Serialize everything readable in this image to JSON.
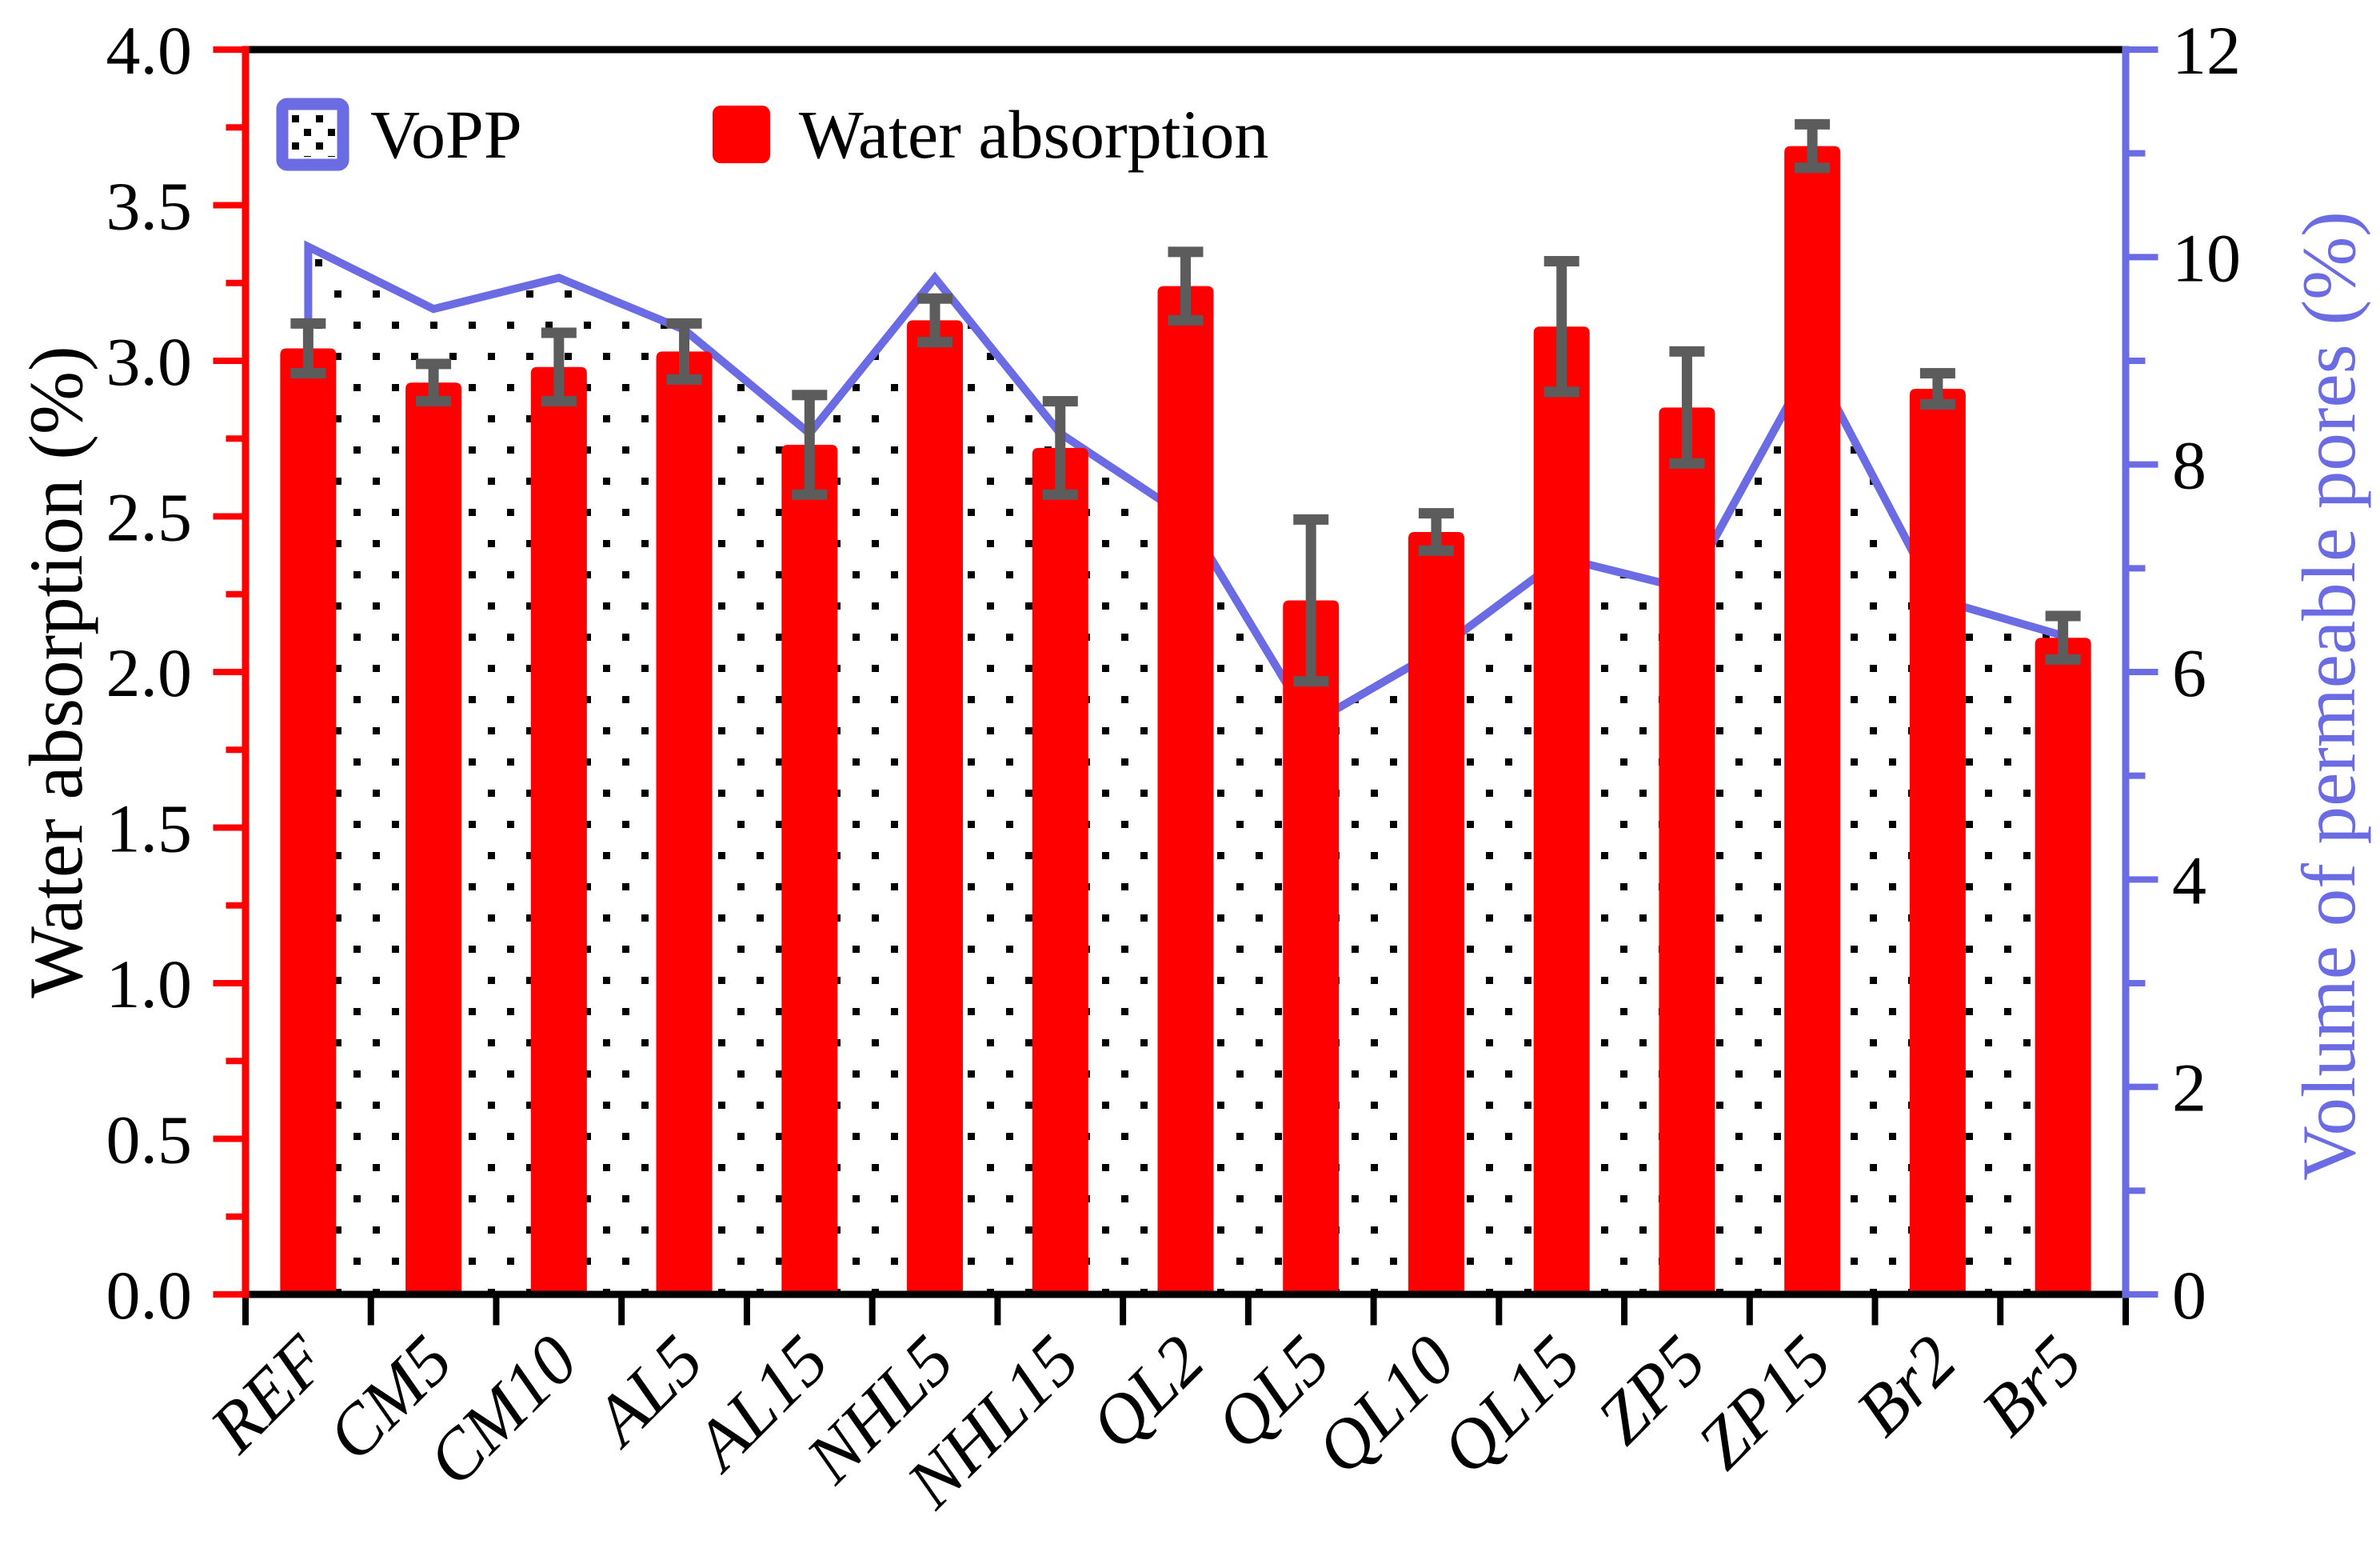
{
  "figure": {
    "legend": {
      "vopp_label": "VoPP",
      "wa_label": "Water absorption"
    },
    "colors": {
      "bar_red": "#fe0000",
      "line_blue": "#6b6be4",
      "error_gray": "#5c5c5c",
      "axis_black": "#000000",
      "left_axis_red": "#fe0000",
      "dot_black": "#000000",
      "background": "#ffffff"
    }
  },
  "chart_data": {
    "type": "bar",
    "categories": [
      "REF",
      "CM5",
      "CM10",
      "AL5",
      "AL15",
      "NHL5",
      "NHL15",
      "QL2",
      "QL5",
      "QL10",
      "QL15",
      "ZP5",
      "ZP15",
      "Br2",
      "Br5"
    ],
    "series": [
      {
        "name": "Water absorption",
        "type": "bar",
        "axis": "left",
        "color": "#fe0000",
        "values": [
          3.04,
          2.93,
          2.98,
          3.03,
          2.73,
          3.13,
          2.72,
          3.24,
          2.23,
          2.45,
          3.11,
          2.85,
          3.69,
          2.91,
          2.11
        ],
        "errors": [
          0.08,
          0.06,
          0.11,
          0.09,
          0.16,
          0.07,
          0.15,
          0.11,
          0.26,
          0.06,
          0.21,
          0.18,
          0.07,
          0.05,
          0.07
        ]
      },
      {
        "name": "VoPP",
        "type": "area-line",
        "axis": "right",
        "color": "#6b6be4",
        "values": [
          10.1,
          9.5,
          9.8,
          9.3,
          8.3,
          9.8,
          8.3,
          7.5,
          5.5,
          6.2,
          7.1,
          6.8,
          9.0,
          6.7,
          6.35
        ]
      }
    ],
    "left_axis": {
      "label": "Water absorption (%)",
      "min": 0,
      "max": 4,
      "major": 0.5,
      "minor": 0.25,
      "tick_labels": [
        "0.0",
        "0.5",
        "1.0",
        "1.5",
        "2.0",
        "2.5",
        "3.0",
        "3.5",
        "4.0"
      ]
    },
    "right_axis": {
      "label": "Volume of permeable pores (%)",
      "min": 0,
      "max": 12,
      "major": 2,
      "minor": 1,
      "tick_labels": [
        "0",
        "2",
        "4",
        "6",
        "8",
        "10",
        "12"
      ]
    },
    "legend_position": "top-left",
    "grid": false
  }
}
